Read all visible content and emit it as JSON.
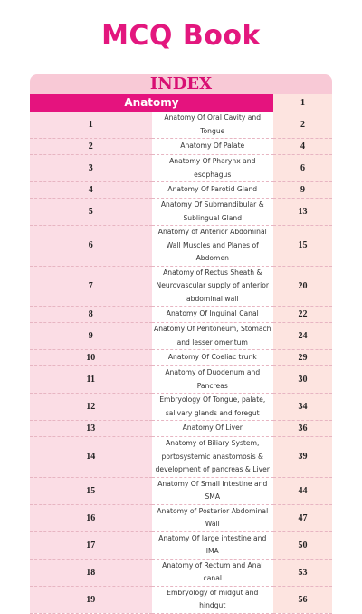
{
  "header": {
    "title": "MCQ Book"
  },
  "index": {
    "title": "INDEX",
    "section": {
      "name": "Anatomy",
      "page": "1"
    },
    "rows": [
      [
        "1",
        "Anatomy Of Oral Cavity and Tongue",
        "2"
      ],
      [
        "2",
        "Anatomy Of Palate",
        "4"
      ],
      [
        "3",
        "Anatomy Of Pharynx and esophagus",
        "6"
      ],
      [
        "4",
        "Anatomy Of Parotid Gland",
        "9"
      ],
      [
        "5",
        "Anatomy Of Submandibular & Sublingual Gland",
        "13"
      ],
      [
        "6",
        "Anatomy of Anterior Abdominal Wall Muscles and Planes of Abdomen",
        "15"
      ],
      [
        "7",
        "Anatomy of Rectus Sheath & Neurovascular supply of anterior abdominal wall",
        "20"
      ],
      [
        "8",
        "Anatomy Of Inguinal Canal",
        "22"
      ],
      [
        "9",
        "Anatomy Of Peritoneum, Stomach and lesser omentum",
        "24"
      ],
      [
        "10",
        "Anatomy Of Coeliac trunk",
        "29"
      ],
      [
        "11",
        "Anatomy of Duodenum and Pancreas",
        "30"
      ],
      [
        "12",
        "Embryology Of Tongue, palate, salivary glands and foregut",
        "34"
      ],
      [
        "13",
        "Anatomy Of Liver",
        "36"
      ],
      [
        "14",
        "Anatomy of Biliary System, portosystemic anastomosis & development of pancreas & Liver",
        "39"
      ],
      [
        "15",
        "Anatomy Of Small Intestine and SMA",
        "44"
      ],
      [
        "16",
        "Anatomy of Posterior Abdominal Wall",
        "47"
      ],
      [
        "17",
        "Anatomy Of large intestine and IMA",
        "50"
      ],
      [
        "18",
        "Anatomy of Rectum and Anal canal",
        "53"
      ],
      [
        "19",
        "Embryology of midgut and hindgut",
        "56"
      ]
    ]
  }
}
